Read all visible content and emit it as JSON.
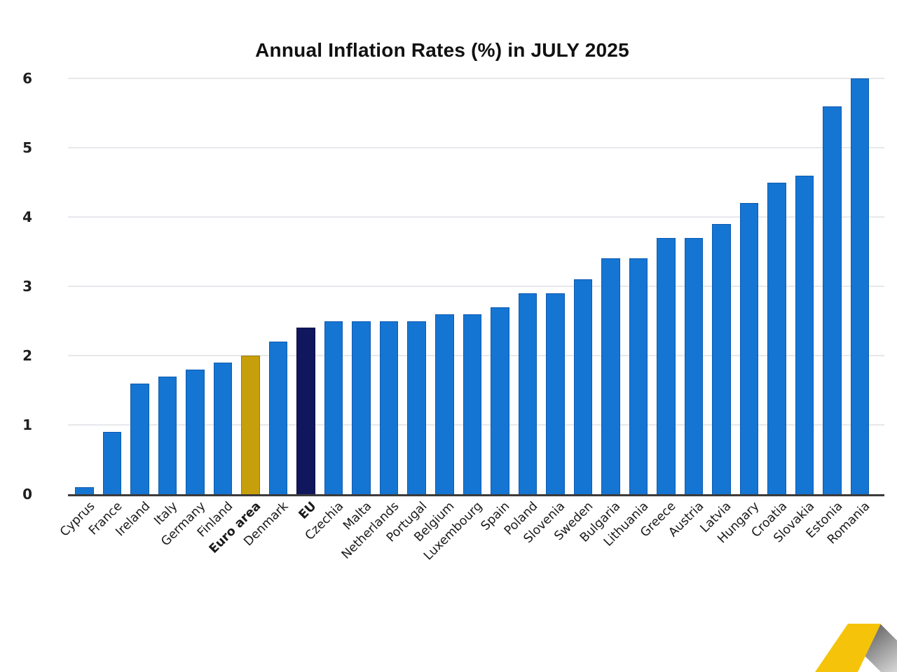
{
  "title": "Annual Inflation Rates (%) in JULY 2025",
  "chart_data": {
    "type": "bar",
    "title": "Annual Inflation Rates (%) in JULY 2025",
    "categories": [
      "Cyprus",
      "France",
      "Ireland",
      "Italy",
      "Germany",
      "Finland",
      "Euro area",
      "Denmark",
      "EU",
      "Czechia",
      "Malta",
      "Netherlands",
      "Portugal",
      "Belgium",
      "Luxembourg",
      "Spain",
      "Poland",
      "Slovenia",
      "Sweden",
      "Bulgaria",
      "Lithuania",
      "Greece",
      "Austria",
      "Latvia",
      "Hungary",
      "Croatia",
      "Slovakia",
      "Estonia",
      "Romania"
    ],
    "values": [
      0.1,
      0.9,
      1.6,
      1.7,
      1.8,
      1.9,
      2.0,
      2.2,
      2.4,
      2.5,
      2.5,
      2.5,
      2.5,
      2.6,
      2.6,
      2.7,
      2.9,
      2.9,
      3.1,
      3.4,
      3.4,
      3.7,
      3.7,
      3.9,
      4.2,
      4.5,
      4.6,
      5.6,
      6.0
    ],
    "bold_categories": [
      "Euro area",
      "EU"
    ],
    "yticks": [
      0,
      1,
      2,
      3,
      4,
      5,
      6
    ],
    "ylim": [
      0,
      6
    ],
    "xlabel": "",
    "ylabel": "",
    "grid": "horizontal",
    "legend": "none",
    "bar_colors": {
      "default": "#1575D2",
      "Euro area": "#C79F0C",
      "EU": "#10175C"
    },
    "bar_border_colors": {
      "default": "#0D5BB0",
      "Euro area": "#9A7B08",
      "EU": "#0A0F45"
    }
  },
  "colors": {
    "background": "#FFFFFF",
    "gridline": "#E7E8EC",
    "axis": "#3B3B3B",
    "text": "#1A1A1A",
    "logo_yellow": "#F5C40A",
    "logo_gray_dark": "#6E6E6E",
    "logo_gray_light": "#E2E2E2"
  },
  "logo": {
    "name": "yellow-ribbon-logo"
  }
}
